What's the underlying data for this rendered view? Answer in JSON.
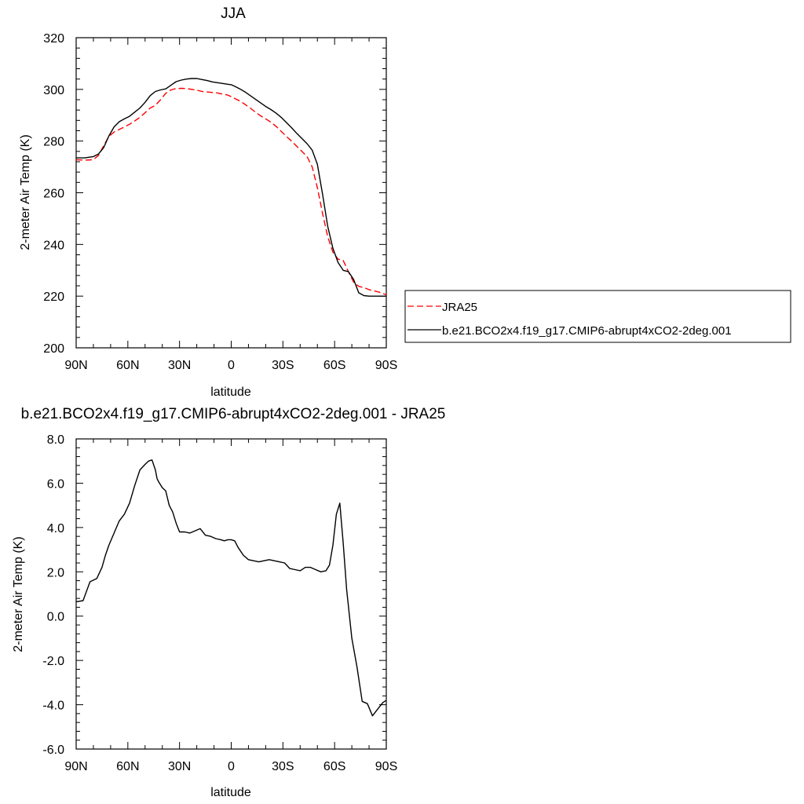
{
  "chart_data": [
    {
      "type": "line",
      "title": "JJA",
      "xlabel": "latitude",
      "ylabel": "2-meter Air Temp (K)",
      "xlim": [
        90,
        -90
      ],
      "ylim": [
        200,
        320
      ],
      "x_ticks": [
        90,
        60,
        30,
        0,
        -30,
        -60,
        -90
      ],
      "x_tick_labels": [
        "90N",
        "60N",
        "30N",
        "0",
        "30S",
        "60S",
        "90S"
      ],
      "y_ticks": [
        200,
        220,
        240,
        260,
        280,
        300,
        320
      ],
      "y_tick_labels": [
        "200",
        "220",
        "240",
        "260",
        "280",
        "300",
        "320"
      ],
      "grid": false,
      "legend": "right",
      "series": [
        {
          "name": "JRA25",
          "color": "#ff0000",
          "dash": "dashed",
          "x": [
            90,
            85,
            80,
            77,
            74,
            71,
            68,
            65,
            62,
            59,
            56,
            53,
            50,
            47,
            44,
            41,
            38,
            35,
            32,
            29,
            26,
            23,
            20,
            17,
            14,
            11,
            8,
            5,
            2,
            0,
            -2,
            -5,
            -8,
            -11,
            -14,
            -17,
            -20,
            -23,
            -26,
            -29,
            -32,
            -35,
            -38,
            -41,
            -44,
            -47,
            -50,
            -53,
            -56,
            -59,
            -62,
            -65,
            -68,
            -71,
            -74,
            -77,
            -80,
            -83,
            -86,
            -88,
            -90
          ],
          "y": [
            272.8,
            272.6,
            272.8,
            274.5,
            278.2,
            281.8,
            283.5,
            284.5,
            285.5,
            286.5,
            287.8,
            289.2,
            291.0,
            292.8,
            293.8,
            296.0,
            298.5,
            299.8,
            300.3,
            300.4,
            300.3,
            300.0,
            299.7,
            299.2,
            299.0,
            298.8,
            298.6,
            298.2,
            297.8,
            297.2,
            296.5,
            295.5,
            294.2,
            292.8,
            291.2,
            289.8,
            288.6,
            287.3,
            285.7,
            283.8,
            281.8,
            280.0,
            278.0,
            276.0,
            274.0,
            270.0,
            262.0,
            252.0,
            243.0,
            237.0,
            234.3,
            233.8,
            229.5,
            225.5,
            223.8,
            223.3,
            222.5,
            222.0,
            221.5,
            221.0,
            220.5
          ]
        },
        {
          "name": "b.e21.BCO2x4.f19_g17.CMIP6-abrupt4xCO2-2deg.001",
          "color": "#000000",
          "dash": "solid",
          "x": [
            90,
            85,
            80,
            77,
            74,
            71,
            68,
            65,
            62,
            59,
            56,
            53,
            50,
            47,
            44,
            41,
            38,
            35,
            32,
            29,
            26,
            23,
            20,
            17,
            14,
            11,
            8,
            5,
            2,
            0,
            -2,
            -5,
            -8,
            -11,
            -14,
            -17,
            -20,
            -23,
            -26,
            -29,
            -32,
            -35,
            -38,
            -41,
            -44,
            -47,
            -50,
            -53,
            -56,
            -59,
            -62,
            -65,
            -68,
            -71,
            -74,
            -77,
            -80,
            -83,
            -86,
            -88,
            -90
          ],
          "y": [
            273.5,
            273.5,
            274.0,
            275.0,
            277.5,
            282.0,
            285.5,
            287.5,
            288.6,
            289.6,
            291.2,
            292.8,
            295.0,
            297.6,
            299.2,
            299.8,
            300.2,
            301.6,
            303.0,
            303.6,
            304.0,
            304.2,
            304.2,
            303.8,
            303.4,
            302.9,
            302.6,
            302.3,
            302.0,
            301.8,
            301.2,
            300.2,
            299.0,
            297.6,
            296.2,
            294.8,
            293.4,
            292.2,
            290.8,
            289.2,
            287.2,
            285.2,
            283.0,
            281.0,
            279.0,
            276.5,
            271.0,
            259.5,
            247.0,
            238.5,
            233.0,
            230.0,
            229.5,
            226.5,
            221.3,
            220.2,
            220.0,
            220.0,
            220.0,
            220.0,
            220.0
          ]
        }
      ]
    },
    {
      "type": "line",
      "title": "b.e21.BCO2x4.f19_g17.CMIP6-abrupt4xCO2-2deg.001 - JRA25",
      "xlabel": "latitude",
      "ylabel": "2-meter Air Temp (K)",
      "xlim": [
        90,
        -90
      ],
      "ylim": [
        -6.0,
        8.0
      ],
      "x_ticks": [
        90,
        60,
        30,
        0,
        -30,
        -60,
        -90
      ],
      "x_tick_labels": [
        "90N",
        "60N",
        "30N",
        "0",
        "30S",
        "60S",
        "90S"
      ],
      "y_ticks": [
        -6,
        -4,
        -2,
        0,
        2,
        4,
        6,
        8
      ],
      "y_tick_labels": [
        "-6.0",
        "-4.0",
        "-2.0",
        "0.0",
        "2.0",
        "4.0",
        "6.0",
        "8.0"
      ],
      "grid": false,
      "series": [
        {
          "color": "#000000",
          "dash": "solid",
          "x": [
            90,
            86,
            82,
            78,
            75,
            73,
            71,
            68,
            65,
            62,
            59,
            56,
            53,
            50,
            48,
            46,
            44,
            43,
            42,
            40,
            38,
            36,
            34,
            32,
            30,
            27,
            24,
            21,
            18,
            15,
            12,
            9,
            6,
            4,
            2,
            0,
            -2,
            -4,
            -7,
            -10,
            -13,
            -16,
            -19,
            -22,
            -25,
            -28,
            -31,
            -34,
            -37,
            -40,
            -43,
            -46,
            -49,
            -52,
            -55,
            -57,
            -59,
            -61,
            -63,
            -65,
            -67,
            -70,
            -73,
            -76,
            -79,
            -82,
            -85,
            -88,
            -90
          ],
          "y": [
            0.65,
            0.7,
            1.55,
            1.7,
            2.2,
            2.75,
            3.2,
            3.75,
            4.3,
            4.6,
            5.1,
            5.9,
            6.6,
            6.85,
            7.0,
            7.05,
            6.6,
            6.2,
            6.05,
            5.8,
            5.65,
            5.0,
            4.7,
            4.2,
            3.8,
            3.8,
            3.75,
            3.85,
            3.95,
            3.65,
            3.6,
            3.5,
            3.45,
            3.4,
            3.45,
            3.45,
            3.4,
            3.1,
            2.75,
            2.55,
            2.5,
            2.45,
            2.5,
            2.55,
            2.5,
            2.45,
            2.4,
            2.15,
            2.1,
            2.05,
            2.2,
            2.2,
            2.1,
            2.0,
            2.05,
            2.3,
            3.2,
            4.6,
            5.1,
            3.3,
            1.2,
            -1.0,
            -2.3,
            -3.85,
            -3.95,
            -4.5,
            -4.2,
            -3.9,
            -3.8
          ]
        }
      ]
    }
  ]
}
